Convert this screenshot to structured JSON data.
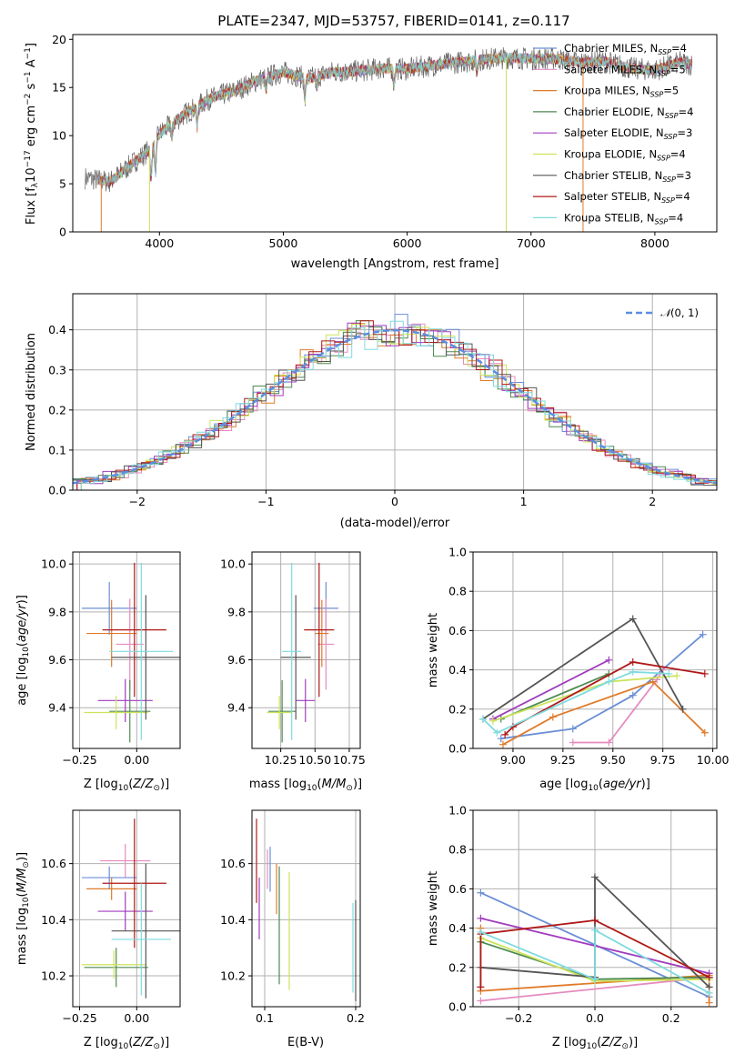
{
  "figure_title": "PLATE=2347, MJD=53757, FIBERID=0141, z=0.117",
  "series_names": [
    "Chabrier MILES, N_SSP=4",
    "Salpeter MILES, N_SSP=5",
    "Kroupa MILES, N_SSP=5",
    "Chabrier ELODIE, N_SSP=4",
    "Salpeter ELODIE, N_SSP=3",
    "Kroupa ELODIE, N_SSP=4",
    "Chabrier STELIB, N_SSP=3",
    "Salpeter STELIB, N_SSP=4",
    "Kroupa STELIB, N_SSP=4"
  ],
  "series_colors": [
    "#6b8fd6",
    "#e58bbf",
    "#e07b2a",
    "#4e8a52",
    "#a13cbf",
    "#cde35a",
    "#555555",
    "#b01818",
    "#7edbe0"
  ],
  "chart_data": [
    {
      "id": "spectrum",
      "type": "line",
      "title": "PLATE=2347, MJD=53757, FIBERID=0141, z=0.117",
      "xlabel": "wavelength [Angstrom, rest frame]",
      "ylabel": "Flux [fλ10^-17 erg cm^-2 s^-1 A^-1]",
      "xlim": [
        3300,
        8500
      ],
      "ylim": [
        0,
        20.5
      ],
      "xticks": [
        4000,
        5000,
        6000,
        7000,
        8000
      ],
      "yticks": [
        0,
        5,
        10,
        15,
        20
      ],
      "grid": false,
      "legend_position": "top-right",
      "continuum": [
        [
          3400,
          5.6
        ],
        [
          3600,
          5.2
        ],
        [
          3800,
          7.3
        ],
        [
          3950,
          8.8
        ],
        [
          4000,
          10.2
        ],
        [
          4200,
          12.2
        ],
        [
          4400,
          13.8
        ],
        [
          4600,
          14.6
        ],
        [
          4800,
          15.8
        ],
        [
          5000,
          16.6
        ],
        [
          5200,
          15.9
        ],
        [
          5400,
          16.6
        ],
        [
          5600,
          16.7
        ],
        [
          5800,
          17.0
        ],
        [
          6000,
          16.9
        ],
        [
          6200,
          17.3
        ],
        [
          6400,
          17.6
        ],
        [
          6600,
          17.9
        ],
        [
          6800,
          18.1
        ],
        [
          7000,
          18.0
        ],
        [
          7200,
          18.0
        ],
        [
          7400,
          17.6
        ],
        [
          7600,
          17.7
        ],
        [
          7800,
          17.0
        ],
        [
          8000,
          16.8
        ],
        [
          8200,
          17.6
        ],
        [
          8300,
          17.4
        ]
      ]
    },
    {
      "id": "residuals",
      "type": "line",
      "xlabel": "(data-model)/error",
      "ylabel": "Normed distribution",
      "xlim": [
        -2.5,
        2.5
      ],
      "ylim": [
        0,
        0.49
      ],
      "xticks": [
        -2,
        -1,
        0,
        1,
        2
      ],
      "yticks": [
        0.0,
        0.1,
        0.2,
        0.3,
        0.4
      ],
      "grid": true,
      "legend_position": "top-right",
      "reference_label": "N(0,1)",
      "reference_color": "#5b8ee0"
    },
    {
      "id": "age_vs_Z",
      "type": "scatter",
      "xlabel": "Z [log10(Z/Zsun)]",
      "ylabel": "age  [log10(age/yr)]",
      "xlim": [
        -0.28,
        0.19
      ],
      "ylim": [
        9.23,
        10.05
      ],
      "xticks": [
        -0.25,
        0.0
      ],
      "yticks": [
        9.4,
        9.6,
        9.8,
        10.0
      ],
      "grid": true,
      "points": [
        {
          "x": -0.12,
          "xerr": 0.12,
          "y": 9.815,
          "yerr": 0.11
        },
        {
          "x": -0.03,
          "xerr": 0.06,
          "y": 9.665,
          "yerr": 0.19
        },
        {
          "x": -0.11,
          "xerr": 0.11,
          "y": 9.71,
          "yerr": 0.14
        },
        {
          "x": -0.03,
          "xerr": 0.09,
          "y": 9.385,
          "yerr": 0.13
        },
        {
          "x": -0.05,
          "xerr": 0.12,
          "y": 9.43,
          "yerr": 0.09
        },
        {
          "x": -0.09,
          "xerr": 0.14,
          "y": 9.38,
          "yerr": 0.07
        },
        {
          "x": 0.04,
          "xerr": 0.15,
          "y": 9.61,
          "yerr": 0.26
        },
        {
          "x": -0.01,
          "xerr": 0.14,
          "y": 9.725,
          "yerr": 0.28
        },
        {
          "x": 0.02,
          "xerr": 0.14,
          "y": 9.635,
          "yerr": 0.37
        }
      ]
    },
    {
      "id": "age_vs_mass",
      "type": "scatter",
      "xlabel": "mass [log10(M/Msun)]",
      "ylabel": "",
      "xlim": [
        10.04,
        10.83
      ],
      "ylim": [
        9.23,
        10.05
      ],
      "xticks": [
        10.25,
        10.5,
        10.75
      ],
      "yticks": [
        9.4,
        9.6,
        9.8,
        10.0
      ],
      "grid": true,
      "points": [
        {
          "x": 10.58,
          "xerr": 0.09,
          "y": 9.815,
          "yerr": 0.11
        },
        {
          "x": 10.58,
          "xerr": 0.06,
          "y": 9.665,
          "yerr": 0.19
        },
        {
          "x": 10.55,
          "xerr": 0.05,
          "y": 9.71,
          "yerr": 0.14
        },
        {
          "x": 10.26,
          "xerr": 0.1,
          "y": 9.385,
          "yerr": 0.13
        },
        {
          "x": 10.43,
          "xerr": 0.07,
          "y": 9.43,
          "yerr": 0.09
        },
        {
          "x": 10.24,
          "xerr": 0.09,
          "y": 9.38,
          "yerr": 0.07
        },
        {
          "x": 10.36,
          "xerr": 0.11,
          "y": 9.61,
          "yerr": 0.26
        },
        {
          "x": 10.53,
          "xerr": 0.11,
          "y": 9.725,
          "yerr": 0.28
        },
        {
          "x": 10.33,
          "xerr": 0.07,
          "y": 9.635,
          "yerr": 0.37
        }
      ]
    },
    {
      "id": "weight_vs_age",
      "type": "line",
      "xlabel": "age  [log10(age/yr)]",
      "ylabel": "mass weight",
      "xlim": [
        8.8,
        10.02
      ],
      "ylim": [
        0,
        1.0
      ],
      "xticks": [
        9.0,
        9.25,
        9.5,
        9.75,
        10.0
      ],
      "yticks": [
        0.0,
        0.2,
        0.4,
        0.6,
        0.8,
        1.0
      ],
      "grid": true,
      "series": [
        {
          "points": [
            [
              8.94,
              0.05
            ],
            [
              9.3,
              0.1
            ],
            [
              9.6,
              0.27
            ],
            [
              9.95,
              0.58
            ]
          ]
        },
        {
          "points": [
            [
              9.3,
              0.03
            ],
            [
              9.48,
              0.03
            ],
            [
              9.72,
              0.35
            ],
            [
              9.75,
              0.4
            ]
          ]
        },
        {
          "points": [
            [
              8.95,
              0.02
            ],
            [
              9.2,
              0.16
            ],
            [
              9.7,
              0.34
            ],
            [
              9.96,
              0.08
            ]
          ]
        },
        {
          "points": [
            [
              8.94,
              0.15
            ],
            [
              9.48,
              0.38
            ]
          ]
        },
        {
          "points": [
            [
              8.9,
              0.15
            ],
            [
              9.48,
              0.45
            ]
          ]
        },
        {
          "points": [
            [
              8.9,
              0.14
            ],
            [
              9.48,
              0.34
            ],
            [
              9.82,
              0.37
            ]
          ]
        },
        {
          "points": [
            [
              8.85,
              0.15
            ],
            [
              9.6,
              0.66
            ],
            [
              9.85,
              0.2
            ]
          ]
        },
        {
          "points": [
            [
              8.96,
              0.07
            ],
            [
              9.0,
              0.11
            ],
            [
              9.6,
              0.44
            ],
            [
              9.96,
              0.38
            ]
          ]
        },
        {
          "points": [
            [
              8.85,
              0.15
            ],
            [
              8.92,
              0.08
            ],
            [
              9.48,
              0.34
            ],
            [
              9.6,
              0.39
            ],
            [
              9.78,
              0.38
            ]
          ]
        }
      ]
    },
    {
      "id": "mass_vs_Z",
      "type": "scatter",
      "xlabel": "Z [log10(Z/Zsun)]",
      "ylabel": "mass [log10(M/Msun)]",
      "xlim": [
        -0.28,
        0.19
      ],
      "ylim": [
        10.09,
        10.79
      ],
      "xticks": [
        -0.25,
        0.0
      ],
      "yticks": [
        10.2,
        10.4,
        10.6
      ],
      "grid": true,
      "points": [
        {
          "x": -0.12,
          "xerr": 0.12,
          "y": 10.55,
          "yerr": 0.04
        },
        {
          "x": -0.05,
          "xerr": 0.11,
          "y": 10.61,
          "yerr": 0.06
        },
        {
          "x": -0.11,
          "xerr": 0.11,
          "y": 10.51,
          "yerr": 0.04
        },
        {
          "x": -0.09,
          "xerr": 0.14,
          "y": 10.23,
          "yerr": 0.07
        },
        {
          "x": -0.05,
          "xerr": 0.12,
          "y": 10.43,
          "yerr": 0.07
        },
        {
          "x": -0.1,
          "xerr": 0.14,
          "y": 10.24,
          "yerr": 0.05
        },
        {
          "x": 0.04,
          "xerr": 0.15,
          "y": 10.36,
          "yerr": 0.24
        },
        {
          "x": -0.01,
          "xerr": 0.14,
          "y": 10.53,
          "yerr": 0.23
        },
        {
          "x": 0.02,
          "xerr": 0.13,
          "y": 10.33,
          "yerr": 0.2
        }
      ]
    },
    {
      "id": "mass_vs_EBV",
      "type": "scatter",
      "xlabel": "E(B-V)",
      "ylabel": "",
      "xlim": [
        0.086,
        0.205
      ],
      "ylim": [
        10.09,
        10.79
      ],
      "xticks": [
        0.1,
        0.2
      ],
      "yticks": [
        10.2,
        10.4,
        10.6
      ],
      "grid": true,
      "points": [
        {
          "x": 0.106,
          "y": 10.58,
          "yerr": 0.08
        },
        {
          "x": 0.103,
          "y": 10.58,
          "yerr": 0.07
        },
        {
          "x": 0.113,
          "y": 10.51,
          "yerr": 0.09
        },
        {
          "x": 0.116,
          "y": 10.38,
          "yerr": 0.21
        },
        {
          "x": 0.094,
          "y": 10.44,
          "yerr": 0.11
        },
        {
          "x": 0.127,
          "y": 10.36,
          "yerr": 0.21
        },
        {
          "x": 0.2,
          "y": 10.29,
          "yerr": 0.18
        },
        {
          "x": 0.091,
          "y": 10.61,
          "yerr": 0.15
        },
        {
          "x": 0.197,
          "y": 10.3,
          "yerr": 0.16
        }
      ]
    },
    {
      "id": "weight_vs_Z",
      "type": "line",
      "xlabel": "Z [log10(Z/Zsun)]",
      "ylabel": "mass weight",
      "xlim": [
        -0.32,
        0.32
      ],
      "ylim": [
        0,
        1.0
      ],
      "xticks": [
        -0.2,
        0.0,
        0.2
      ],
      "yticks": [
        0.0,
        0.2,
        0.4,
        0.6,
        0.8,
        1.0
      ],
      "grid": true,
      "series": [
        {
          "points": [
            [
              -0.3,
              0.58
            ],
            [
              0.3,
              0.05
            ]
          ]
        },
        {
          "points": [
            [
              -0.3,
              0.03
            ],
            [
              0.3,
              0.15
            ]
          ]
        },
        {
          "points": [
            [
              -0.3,
              0.4
            ],
            [
              -0.3,
              0.08
            ],
            [
              0.3,
              0.16
            ],
            [
              0.3,
              0.02
            ]
          ]
        },
        {
          "points": [
            [
              -0.3,
              0.33
            ],
            [
              0.0,
              0.14
            ],
            [
              0.3,
              0.15
            ]
          ]
        },
        {
          "points": [
            [
              -0.3,
              0.45
            ],
            [
              0.3,
              0.17
            ]
          ]
        },
        {
          "points": [
            [
              -0.3,
              0.35
            ],
            [
              0.0,
              0.13
            ],
            [
              0.3,
              0.14
            ]
          ]
        },
        {
          "points": [
            [
              -0.3,
              0.2
            ],
            [
              0.0,
              0.15
            ],
            [
              0.0,
              0.66
            ],
            [
              0.3,
              0.1
            ]
          ]
        },
        {
          "points": [
            [
              -0.3,
              0.1
            ],
            [
              -0.3,
              0.37
            ],
            [
              0.0,
              0.44
            ],
            [
              0.3,
              0.15
            ]
          ]
        },
        {
          "points": [
            [
              -0.3,
              0.38
            ],
            [
              0.0,
              0.14
            ],
            [
              0.0,
              0.39
            ],
            [
              0.3,
              0.07
            ]
          ]
        }
      ]
    }
  ]
}
